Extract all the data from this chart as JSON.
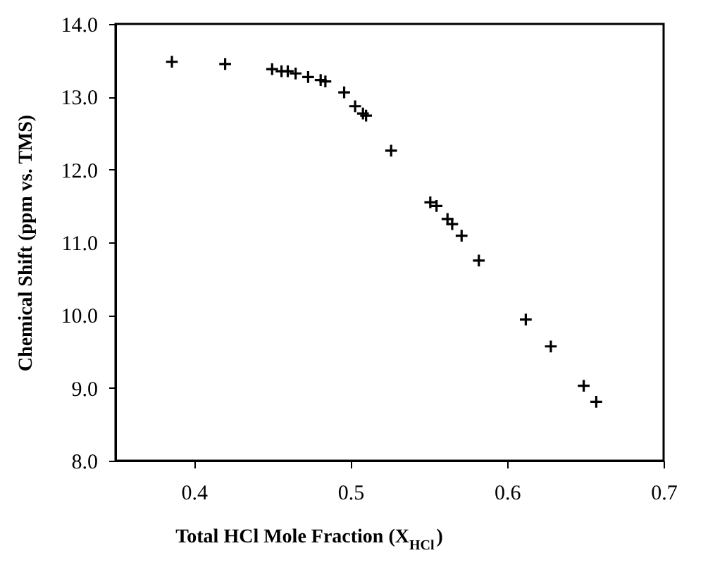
{
  "chart_data": {
    "type": "scatter",
    "xlabel": "Total HCl Mole Fraction (X$_{HCl}$)",
    "ylabel": "Chemical Shift (ppm vs. TMS)",
    "x": [
      0.386,
      0.42,
      0.45,
      0.456,
      0.46,
      0.465,
      0.473,
      0.481,
      0.484,
      0.496,
      0.503,
      0.508,
      0.51,
      0.526,
      0.551,
      0.555,
      0.562,
      0.565,
      0.571,
      0.582,
      0.612,
      0.628,
      0.649,
      0.657
    ],
    "series": [
      {
        "color": "#000000",
        "values": [
          13.48,
          13.45,
          13.38,
          13.35,
          13.35,
          13.32,
          13.27,
          13.23,
          13.21,
          13.06,
          12.87,
          12.77,
          12.74,
          12.26,
          11.55,
          11.5,
          11.32,
          11.25,
          11.09,
          10.75,
          9.94,
          9.57,
          9.03,
          8.81
        ]
      }
    ],
    "xlim": [
      0.35,
      0.7
    ],
    "xticks": [
      0.4,
      0.5,
      0.6,
      0.7
    ],
    "ylim": [
      8.0,
      14.0
    ],
    "yticks": [
      {
        "value": 8,
        "label": "8.0"
      },
      {
        "value": 9,
        "label": "9.0"
      },
      {
        "value": 10,
        "label": "10.0"
      },
      {
        "value": 11,
        "label": "11.0"
      },
      {
        "value": 12,
        "label": "12.0"
      },
      {
        "value": 13,
        "label": "13.0"
      },
      {
        "value": 14,
        "label": "14.0"
      }
    ],
    "grid": false,
    "legend": false,
    "marker": "cross"
  }
}
